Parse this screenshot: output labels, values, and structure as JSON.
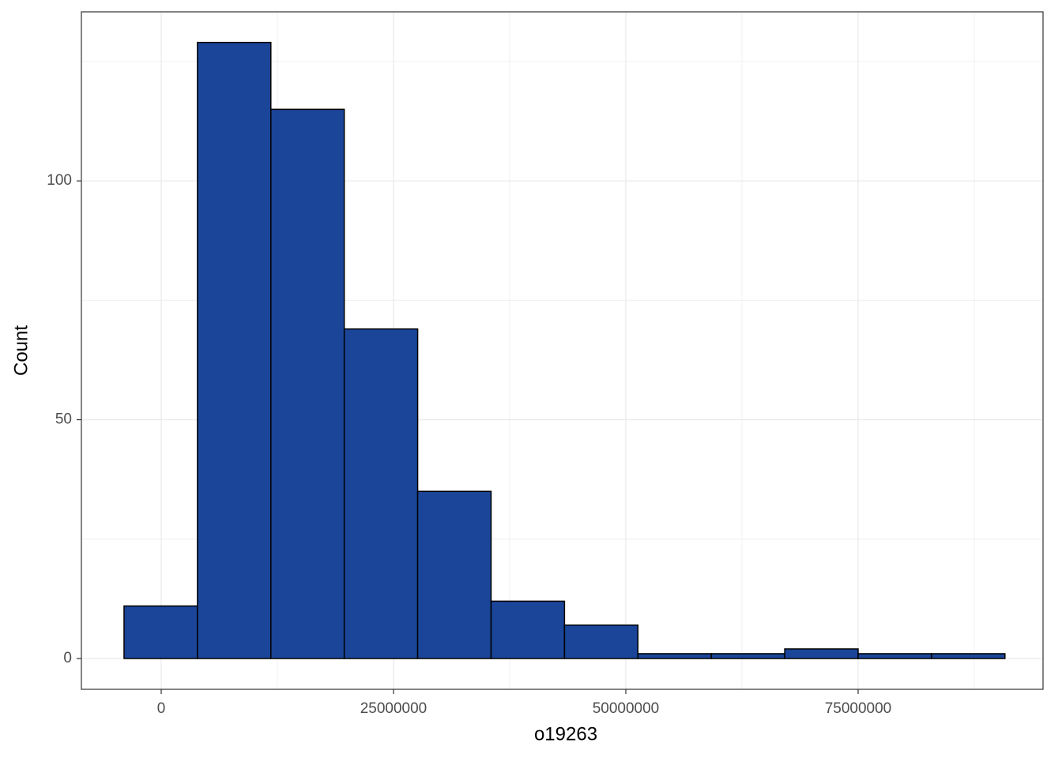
{
  "chart_data": {
    "type": "histogram",
    "x_label": "o19263",
    "y_label": "Count",
    "bins": [
      -4000000,
      3900000,
      11800000,
      19700000,
      27600000,
      35500000,
      43400000,
      51300000,
      59200000,
      67100000,
      75000000,
      82900000,
      90800000
    ],
    "values": [
      11,
      129,
      115,
      69,
      35,
      12,
      7,
      1,
      1,
      2,
      1,
      1
    ],
    "color": "#1a4599",
    "edgecolor": "#000000",
    "xlim": [
      -8590000,
      94900000
    ],
    "xticks": [
      0,
      25000000,
      50000000,
      75000000
    ],
    "ylim": [
      -6.45,
      135.4
    ],
    "yticks": [
      0,
      50,
      100
    ],
    "grid": true,
    "minor_grid": true
  }
}
